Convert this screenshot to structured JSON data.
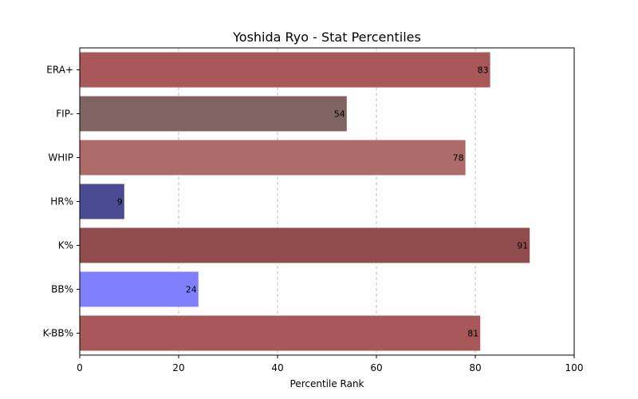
{
  "chart_data": {
    "type": "bar",
    "orientation": "horizontal",
    "title": "Yoshida Ryo - Stat Percentiles",
    "xlabel": "Percentile Rank",
    "ylabel": "",
    "xlim": [
      0,
      100
    ],
    "xticks": [
      0,
      20,
      40,
      60,
      80,
      100
    ],
    "grid": "x-dashed",
    "categories": [
      "ERA+",
      "FIP-",
      "WHIP",
      "HR%",
      "K%",
      "BB%",
      "K-BB%"
    ],
    "values": [
      83,
      54,
      78,
      9,
      91,
      24,
      81
    ],
    "colors": [
      "#a85858",
      "#806464",
      "#ad6b6a",
      "#4b4b94",
      "#914d4d",
      "#8080ff",
      "#a85858"
    ]
  }
}
